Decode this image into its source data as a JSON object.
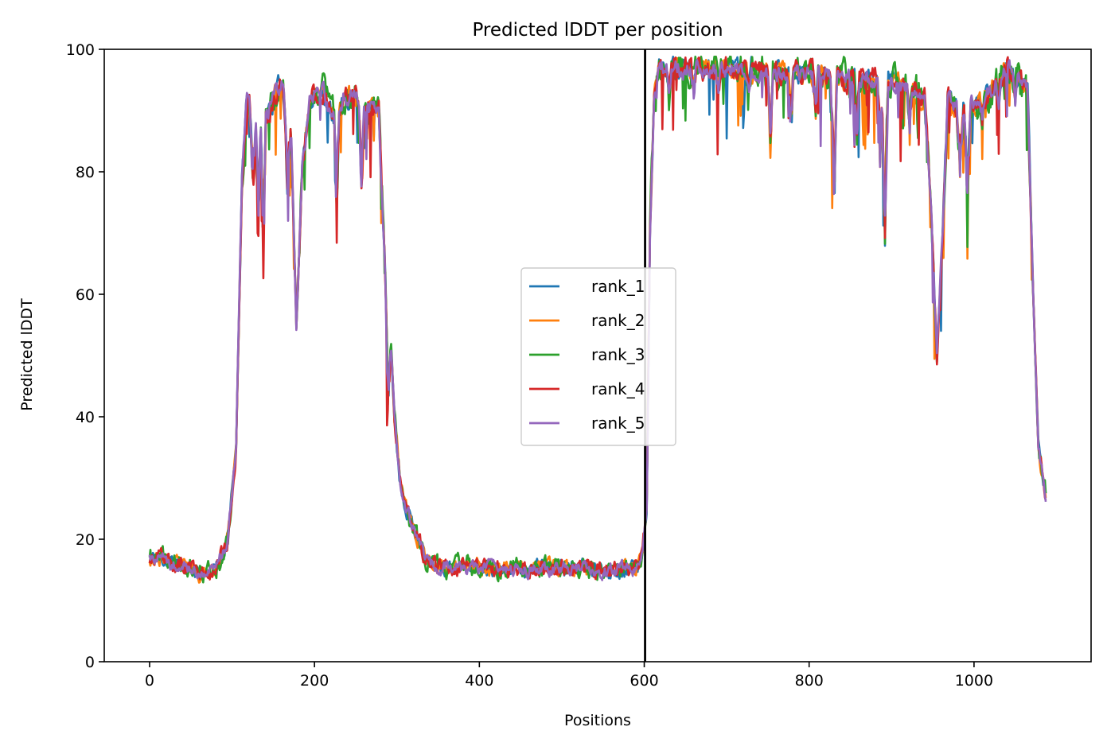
{
  "chart_data": {
    "type": "line",
    "title": "Predicted lDDT per position",
    "xlabel": "Positions",
    "ylabel": "Predicted lDDT",
    "xlim": [
      -55,
      1142
    ],
    "ylim": [
      0,
      100
    ],
    "x_ticks": [
      0,
      200,
      400,
      600,
      800,
      1000
    ],
    "y_ticks": [
      0,
      20,
      40,
      60,
      80,
      100
    ],
    "grid": false,
    "legend_position": "center",
    "vline_x": 601,
    "x_max": 1087,
    "profile_knots": [
      [
        0,
        17
      ],
      [
        20,
        16.5
      ],
      [
        40,
        15.5
      ],
      [
        60,
        14.5
      ],
      [
        80,
        15
      ],
      [
        95,
        20
      ],
      [
        105,
        35
      ],
      [
        112,
        78
      ],
      [
        118,
        93
      ],
      [
        130,
        86
      ],
      [
        145,
        90
      ],
      [
        160,
        95
      ],
      [
        172,
        85
      ],
      [
        178,
        55
      ],
      [
        185,
        80
      ],
      [
        195,
        92
      ],
      [
        210,
        93
      ],
      [
        225,
        88
      ],
      [
        235,
        92
      ],
      [
        250,
        92
      ],
      [
        260,
        89
      ],
      [
        270,
        90
      ],
      [
        278,
        90
      ],
      [
        283,
        72
      ],
      [
        290,
        58
      ],
      [
        297,
        40
      ],
      [
        305,
        28
      ],
      [
        320,
        22
      ],
      [
        335,
        17
      ],
      [
        350,
        15.5
      ],
      [
        400,
        15.5
      ],
      [
        450,
        15
      ],
      [
        500,
        15.5
      ],
      [
        550,
        15
      ],
      [
        590,
        15
      ],
      [
        598,
        18
      ],
      [
        603,
        25
      ],
      [
        607,
        70
      ],
      [
        612,
        93
      ],
      [
        618,
        97
      ],
      [
        700,
        97
      ],
      [
        750,
        96
      ],
      [
        800,
        96
      ],
      [
        850,
        95
      ],
      [
        900,
        95
      ],
      [
        940,
        92
      ],
      [
        948,
        75
      ],
      [
        955,
        50
      ],
      [
        962,
        70
      ],
      [
        968,
        92
      ],
      [
        980,
        90
      ],
      [
        1000,
        91
      ],
      [
        1020,
        93
      ],
      [
        1040,
        97
      ],
      [
        1055,
        95
      ],
      [
        1065,
        93
      ],
      [
        1072,
        60
      ],
      [
        1078,
        35
      ],
      [
        1087,
        27
      ]
    ],
    "dips": [
      [
        125,
        10,
        3
      ],
      [
        132,
        12,
        2
      ],
      [
        138,
        20,
        2
      ],
      [
        167,
        9,
        3
      ],
      [
        227,
        12,
        2
      ],
      [
        257,
        11,
        2
      ],
      [
        289,
        16,
        3
      ],
      [
        630,
        4,
        2
      ],
      [
        660,
        3,
        2
      ],
      [
        690,
        3,
        2
      ],
      [
        727,
        3,
        2
      ],
      [
        753,
        10,
        2
      ],
      [
        778,
        8,
        2
      ],
      [
        808,
        6,
        2
      ],
      [
        830,
        18,
        3
      ],
      [
        858,
        8,
        2
      ],
      [
        886,
        12,
        2
      ],
      [
        892,
        22,
        3
      ],
      [
        922,
        6,
        2
      ],
      [
        983,
        9,
        3
      ],
      [
        992,
        14,
        3
      ],
      [
        1010,
        4,
        2
      ],
      [
        1030,
        3,
        2
      ],
      [
        1050,
        3,
        2
      ]
    ],
    "series": [
      {
        "name": "rank_1",
        "color": "#1f77b4",
        "seed": 11,
        "noise_lo": 1.2,
        "noise_hi": 1.6
      },
      {
        "name": "rank_2",
        "color": "#ff7f0e",
        "seed": 23,
        "noise_lo": 1.2,
        "noise_hi": 1.6
      },
      {
        "name": "rank_3",
        "color": "#2ca02c",
        "seed": 37,
        "noise_lo": 1.6,
        "noise_hi": 2.6
      },
      {
        "name": "rank_4",
        "color": "#d62728",
        "seed": 53,
        "noise_lo": 1.3,
        "noise_hi": 1.8
      },
      {
        "name": "rank_5",
        "color": "#9467bd",
        "seed": 71,
        "noise_lo": 1.1,
        "noise_hi": 1.4
      }
    ]
  }
}
